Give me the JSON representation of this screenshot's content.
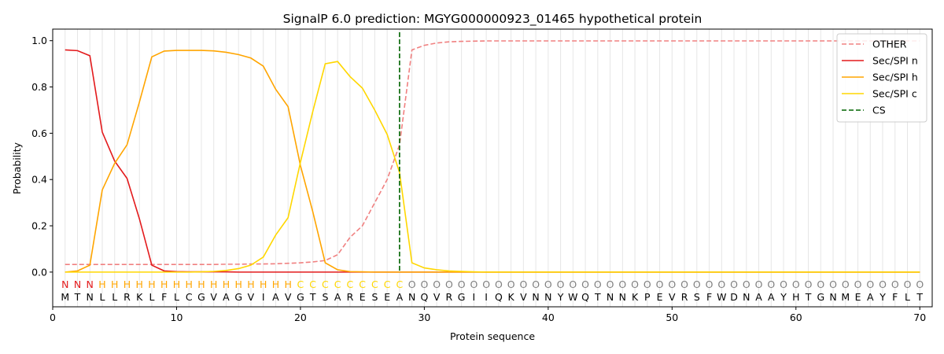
{
  "chart_data": {
    "type": "line",
    "title": "SignalP 6.0 prediction: MGYG000000923_01465 hypothetical protein",
    "xlabel": "Protein sequence",
    "ylabel": "Probability",
    "xlim": [
      0,
      71
    ],
    "ylim": [
      -0.15,
      1.05
    ],
    "x_ticks": [
      0,
      10,
      20,
      30,
      40,
      50,
      60,
      70
    ],
    "y_ticks": [
      0.0,
      0.2,
      0.4,
      0.6,
      0.8,
      1.0
    ],
    "x_tick_labels": [
      "0",
      "10",
      "20",
      "30",
      "40",
      "50",
      "60",
      "70"
    ],
    "y_tick_labels": [
      "0.0",
      "0.2",
      "0.4",
      "0.6",
      "0.8",
      "1.0"
    ],
    "legend_position": "top-right",
    "x": [
      1,
      2,
      3,
      4,
      5,
      6,
      7,
      8,
      9,
      10,
      11,
      12,
      13,
      14,
      15,
      16,
      17,
      18,
      19,
      20,
      21,
      22,
      23,
      24,
      25,
      26,
      27,
      28,
      29,
      30,
      31,
      32,
      33,
      34,
      35,
      36,
      37,
      38,
      39,
      40,
      41,
      42,
      43,
      44,
      45,
      46,
      47,
      48,
      49,
      50,
      51,
      52,
      53,
      54,
      55,
      56,
      57,
      58,
      59,
      60,
      61,
      62,
      63,
      64,
      65,
      66,
      67,
      68,
      69,
      70
    ],
    "series": [
      {
        "name": "OTHER",
        "color": "#f08080",
        "dash": "dashed",
        "values": [
          0.033,
          0.033,
          0.033,
          0.033,
          0.033,
          0.033,
          0.033,
          0.033,
          0.033,
          0.033,
          0.033,
          0.033,
          0.033,
          0.034,
          0.034,
          0.035,
          0.035,
          0.036,
          0.038,
          0.04,
          0.044,
          0.05,
          0.075,
          0.15,
          0.2,
          0.3,
          0.4,
          0.55,
          0.96,
          0.98,
          0.99,
          0.995,
          0.997,
          0.998,
          0.999,
          0.999,
          0.999,
          0.999,
          0.999,
          0.999,
          0.999,
          0.999,
          0.999,
          0.999,
          0.999,
          0.999,
          0.999,
          0.999,
          0.999,
          0.999,
          0.999,
          0.999,
          0.999,
          0.999,
          0.999,
          0.999,
          0.999,
          0.999,
          0.999,
          0.999,
          0.999,
          0.999,
          0.999,
          0.999,
          0.999,
          0.999,
          0.999,
          0.999,
          0.999,
          0.999
        ]
      },
      {
        "name": "Sec/SPI n",
        "color": "#e31a1c",
        "dash": "solid",
        "values": [
          0.96,
          0.957,
          0.935,
          0.605,
          0.48,
          0.405,
          0.23,
          0.03,
          0.005,
          0.002,
          0.001,
          0.001,
          0.001,
          0.001,
          0,
          0,
          0,
          0,
          0,
          0,
          0,
          0,
          0,
          0,
          0,
          0,
          0,
          0,
          0,
          0,
          0,
          0,
          0,
          0,
          0,
          0,
          0,
          0,
          0,
          0,
          0,
          0,
          0,
          0,
          0,
          0,
          0,
          0,
          0,
          0,
          0,
          0,
          0,
          0,
          0,
          0,
          0,
          0,
          0,
          0,
          0,
          0,
          0,
          0,
          0,
          0,
          0,
          0,
          0,
          0
        ]
      },
      {
        "name": "Sec/SPI h",
        "color": "#ffa500",
        "dash": "solid",
        "values": [
          0.0,
          0.005,
          0.03,
          0.355,
          0.47,
          0.55,
          0.735,
          0.93,
          0.955,
          0.958,
          0.958,
          0.958,
          0.956,
          0.95,
          0.94,
          0.925,
          0.89,
          0.79,
          0.715,
          0.46,
          0.26,
          0.04,
          0.01,
          0.002,
          0.001,
          0,
          0,
          0,
          0,
          0,
          0,
          0,
          0,
          0,
          0,
          0,
          0,
          0,
          0,
          0,
          0,
          0,
          0,
          0,
          0,
          0,
          0,
          0,
          0,
          0,
          0,
          0,
          0,
          0,
          0,
          0,
          0,
          0,
          0,
          0,
          0,
          0,
          0,
          0,
          0,
          0,
          0,
          0,
          0,
          0
        ]
      },
      {
        "name": "Sec/SPI c",
        "color": "#ffd700",
        "dash": "solid",
        "values": [
          0,
          0,
          0,
          0,
          0,
          0,
          0,
          0,
          0,
          0,
          0,
          0.001,
          0.003,
          0.007,
          0.015,
          0.03,
          0.065,
          0.16,
          0.235,
          0.475,
          0.695,
          0.9,
          0.91,
          0.845,
          0.795,
          0.7,
          0.595,
          0.43,
          0.04,
          0.018,
          0.01,
          0.005,
          0.003,
          0.001,
          0,
          0,
          0,
          0,
          0,
          0,
          0,
          0,
          0,
          0,
          0,
          0,
          0,
          0,
          0,
          0,
          0,
          0,
          0,
          0,
          0,
          0,
          0,
          0,
          0,
          0,
          0,
          0,
          0,
          0,
          0,
          0,
          0,
          0,
          0,
          0
        ]
      }
    ],
    "cs": {
      "name": "CS",
      "x": 28,
      "color": "#006400",
      "dash": "dashed"
    },
    "sequence": [
      "M",
      "T",
      "N",
      "L",
      "L",
      "R",
      "K",
      "L",
      "F",
      "L",
      "C",
      "G",
      "V",
      "A",
      "G",
      "V",
      "I",
      "A",
      "V",
      "G",
      "T",
      "S",
      "A",
      "R",
      "E",
      "S",
      "E",
      "A",
      "N",
      "Q",
      "V",
      "R",
      "G",
      "I",
      "I",
      "Q",
      "K",
      "V",
      "N",
      "N",
      "Y",
      "W",
      "Q",
      "T",
      "N",
      "N",
      "K",
      "P",
      "E",
      "V",
      "R",
      "S",
      "F",
      "W",
      "D",
      "N",
      "A",
      "A",
      "Y",
      "H",
      "T",
      "G",
      "N",
      "M",
      "E",
      "A",
      "Y",
      "F",
      "L",
      "T"
    ],
    "predicted_labels": [
      "N",
      "N",
      "N",
      "H",
      "H",
      "H",
      "H",
      "H",
      "H",
      "H",
      "H",
      "H",
      "H",
      "H",
      "H",
      "H",
      "H",
      "H",
      "H",
      "C",
      "C",
      "C",
      "C",
      "C",
      "C",
      "C",
      "C",
      "C",
      "O",
      "O",
      "O",
      "O",
      "O",
      "O",
      "O",
      "O",
      "O",
      "O",
      "O",
      "O",
      "O",
      "O",
      "O",
      "O",
      "O",
      "O",
      "O",
      "O",
      "O",
      "O",
      "O",
      "O",
      "O",
      "O",
      "O",
      "O",
      "O",
      "O",
      "O",
      "O",
      "O",
      "O",
      "O",
      "O",
      "O",
      "O",
      "O",
      "O",
      "O",
      "O"
    ],
    "label_colors": {
      "N": "#e31a1c",
      "H": "#ffa500",
      "C": "#ffd700",
      "O": "#808080"
    }
  }
}
